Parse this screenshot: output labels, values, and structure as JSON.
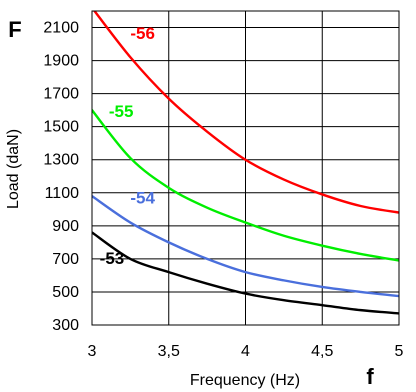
{
  "chart_data": {
    "type": "line",
    "xlabel": "Frequency (Hz)",
    "ylabel": "Load (daN)",
    "x_axis_letter": "f",
    "y_axis_letter": "F",
    "xlim": [
      3,
      5
    ],
    "ylim": [
      300,
      2200
    ],
    "x_ticks": [
      3,
      3.5,
      4,
      4.5,
      5
    ],
    "x_tick_labels": [
      "3",
      "3,5",
      "4",
      "4,5",
      "5"
    ],
    "y_ticks": [
      300,
      500,
      700,
      900,
      1100,
      1300,
      1500,
      1700,
      1900,
      2100
    ],
    "y_tick_labels": [
      "300",
      "500",
      "700",
      "900",
      "1100",
      "1300",
      "1500",
      "1700",
      "1900",
      "2100"
    ],
    "grid": true,
    "series": [
      {
        "name": "-56",
        "color": "#ff0000",
        "x": [
          3,
          3.25,
          3.5,
          3.75,
          4,
          4.25,
          4.5,
          4.75,
          5
        ],
        "y": [
          2220,
          1920,
          1670,
          1470,
          1300,
          1180,
          1090,
          1020,
          980
        ]
      },
      {
        "name": "-55",
        "color": "#00ee00",
        "x": [
          3,
          3.25,
          3.5,
          3.75,
          4,
          4.25,
          4.5,
          4.75,
          5
        ],
        "y": [
          1600,
          1310,
          1130,
          1010,
          920,
          840,
          780,
          730,
          690
        ]
      },
      {
        "name": "-54",
        "color": "#4a6fdc",
        "x": [
          3,
          3.25,
          3.5,
          3.75,
          4,
          4.25,
          4.5,
          4.75,
          5
        ],
        "y": [
          1080,
          920,
          800,
          700,
          620,
          570,
          530,
          500,
          475
        ]
      },
      {
        "name": "-53",
        "color": "#000000",
        "x": [
          3,
          3.25,
          3.5,
          3.75,
          4,
          4.25,
          4.5,
          4.75,
          5
        ],
        "y": [
          860,
          700,
          620,
          550,
          490,
          450,
          420,
          390,
          370
        ]
      }
    ]
  }
}
